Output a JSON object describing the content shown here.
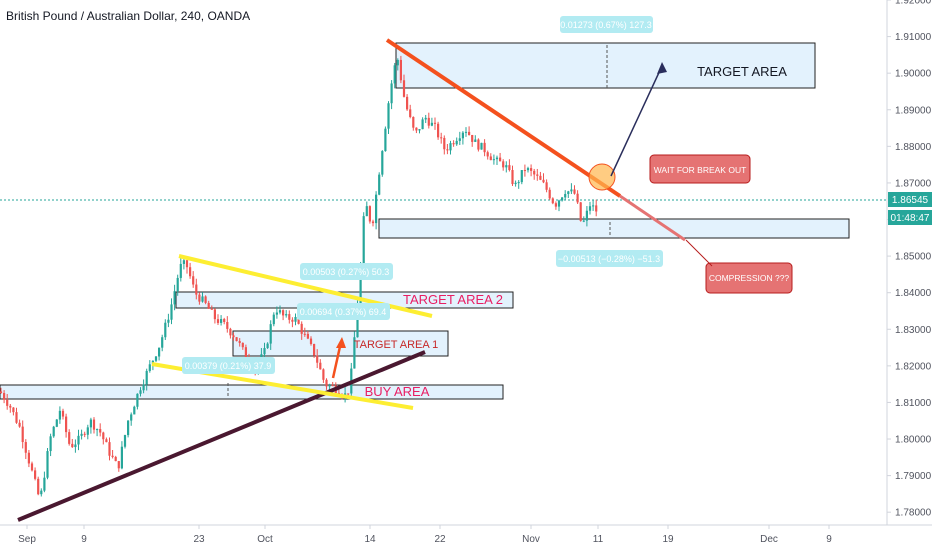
{
  "title": "British Pound / Australian Dollar, 240, OANDA",
  "chart_data": {
    "type": "candlestick",
    "x_ticks": [
      "Sep",
      "9",
      "23",
      "Oct",
      "14",
      "22",
      "Nov",
      "11",
      "19",
      "Dec",
      "9"
    ],
    "y_ticks": [
      "1.92000",
      "1.91000",
      "1.90000",
      "1.89000",
      "1.88000",
      "1.87000",
      "1.86000",
      "1.85000",
      "1.84000",
      "1.83000",
      "1.82000",
      "1.81000",
      "1.80000",
      "1.79000",
      "1.78000"
    ],
    "ylim": [
      1.7765,
      1.92
    ],
    "current_price": "1.86545",
    "countdown": "01:48:47",
    "price_path": [
      [
        0,
        1.813
      ],
      [
        10,
        1.809
      ],
      [
        20,
        1.803
      ],
      [
        30,
        1.793
      ],
      [
        40,
        1.783
      ],
      [
        50,
        1.8
      ],
      [
        60,
        1.808
      ],
      [
        70,
        1.798
      ],
      [
        80,
        1.8
      ],
      [
        90,
        1.805
      ],
      [
        100,
        1.802
      ],
      [
        110,
        1.796
      ],
      [
        118,
        1.792
      ],
      [
        128,
        1.805
      ],
      [
        140,
        1.814
      ],
      [
        150,
        1.82
      ],
      [
        160,
        1.826
      ],
      [
        170,
        1.835
      ],
      [
        180,
        1.847
      ],
      [
        186,
        1.848
      ],
      [
        195,
        1.84
      ],
      [
        205,
        1.837
      ],
      [
        215,
        1.833
      ],
      [
        225,
        1.831
      ],
      [
        235,
        1.828
      ],
      [
        245,
        1.823
      ],
      [
        255,
        1.819
      ],
      [
        265,
        1.824
      ],
      [
        275,
        1.836
      ],
      [
        285,
        1.833
      ],
      [
        295,
        1.833
      ],
      [
        305,
        1.828
      ],
      [
        315,
        1.823
      ],
      [
        325,
        1.815
      ],
      [
        335,
        1.814
      ],
      [
        345,
        1.812
      ],
      [
        350,
        1.814
      ],
      [
        360,
        1.845
      ],
      [
        365,
        1.865
      ],
      [
        372,
        1.858
      ],
      [
        380,
        1.875
      ],
      [
        390,
        1.895
      ],
      [
        397,
        1.905
      ],
      [
        405,
        1.892
      ],
      [
        415,
        1.883
      ],
      [
        425,
        1.888
      ],
      [
        435,
        1.885
      ],
      [
        445,
        1.879
      ],
      [
        455,
        1.882
      ],
      [
        465,
        1.885
      ],
      [
        475,
        1.881
      ],
      [
        485,
        1.879
      ],
      [
        495,
        1.876
      ],
      [
        505,
        1.875
      ],
      [
        515,
        1.869
      ],
      [
        525,
        1.874
      ],
      [
        535,
        1.872
      ],
      [
        545,
        1.869
      ],
      [
        555,
        1.864
      ],
      [
        565,
        1.868
      ],
      [
        575,
        1.867
      ],
      [
        582,
        1.858
      ],
      [
        590,
        1.864
      ],
      [
        598,
        1.862
      ]
    ],
    "annotations": {
      "target_area_main": "TARGET AREA",
      "target_area_2": "TARGET AREA 2",
      "target_area_1": "TARGET AREA 1",
      "buy_area": "BUY AREA",
      "wait_callout": "WAIT FOR BREAK OUT",
      "compression_callout": "COMPRESSION ???",
      "measure_top": "0.01273 (0.67%) 127.3",
      "measure_bottom": "−0.00513 (−0.28%) −51.3",
      "measure_mid_1": "0.00503 (0.27%) 50.3",
      "measure_mid_2": "0.00694 (0.37%) 69.4",
      "measure_low": "0.00379 (0.21%) 37.9"
    },
    "colors": {
      "up": "#26a69a",
      "down": "#ef5350",
      "zone_fill": "#e3f2fd",
      "trend_red": "#f4511e",
      "trend_yellow": "#fdee32",
      "trend_support": "#4a1830",
      "callout_bg": "#e57373",
      "measure_bg": "#b2ebf2",
      "pink_text": "#e91e63",
      "price_tag": "#26a69a"
    }
  }
}
